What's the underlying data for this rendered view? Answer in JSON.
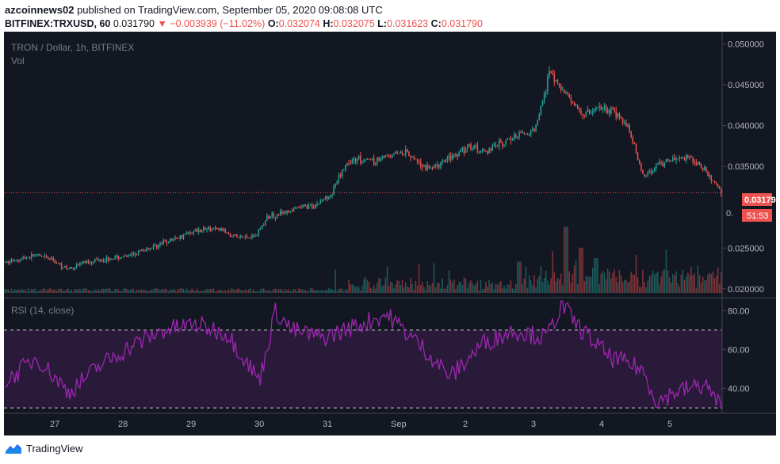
{
  "header": {
    "author": "azcoinnews02",
    "published_text": "published on TradingView.com, September 05, 2020 09:08:08 UTC",
    "symbol": "BITFINEX:TRXUSD, 60",
    "last": "0.031790",
    "change": "−0.003939 (−11.02%)",
    "open_label": "O:",
    "open": "0.032074",
    "high_label": "H:",
    "high": "0.032075",
    "low_label": "L:",
    "low": "0.031623",
    "close_label": "C:",
    "close": "0.031790"
  },
  "chart_data": [
    {
      "type": "candlestick",
      "title": "TRON / Dollar, 1h, BITFINEX",
      "volume_label": "Vol",
      "y_ticks": [
        "0.050000",
        "0.045000",
        "0.040000",
        "0.035000",
        "0.025000",
        "0.020000"
      ],
      "ylim": [
        0.0195,
        0.0515
      ],
      "x_ticks": [
        "27",
        "28",
        "29",
        "30",
        "31",
        "Sep",
        "2",
        "3",
        "4",
        "5"
      ],
      "last_price": "0.031790",
      "countdown": "51:53",
      "hidden_tick_fragment": "0.",
      "price_path": [
        [
          0,
          0.0232
        ],
        [
          1,
          0.0237
        ],
        [
          2,
          0.0241
        ],
        [
          3,
          0.0236
        ],
        [
          4,
          0.0224
        ],
        [
          5,
          0.0232
        ],
        [
          6,
          0.0236
        ],
        [
          7,
          0.0238
        ],
        [
          8,
          0.024
        ],
        [
          9,
          0.0248
        ],
        [
          10,
          0.0255
        ],
        [
          11,
          0.0262
        ],
        [
          12,
          0.027
        ],
        [
          13,
          0.0274
        ],
        [
          14,
          0.0272
        ],
        [
          15,
          0.0263
        ],
        [
          16,
          0.0264
        ],
        [
          17,
          0.029
        ],
        [
          18,
          0.0293
        ],
        [
          19,
          0.03
        ],
        [
          20,
          0.0303
        ],
        [
          21,
          0.0318
        ],
        [
          22,
          0.0356
        ],
        [
          23,
          0.036
        ],
        [
          24,
          0.0355
        ],
        [
          25,
          0.0368
        ],
        [
          26,
          0.0365
        ],
        [
          27,
          0.0348
        ],
        [
          28,
          0.0352
        ],
        [
          29,
          0.0366
        ],
        [
          30,
          0.0375
        ],
        [
          31,
          0.0368
        ],
        [
          32,
          0.038
        ],
        [
          33,
          0.0388
        ],
        [
          34,
          0.0393
        ],
        [
          35,
          0.0465
        ],
        [
          36,
          0.044
        ],
        [
          37,
          0.0415
        ],
        [
          38,
          0.042
        ],
        [
          39,
          0.042
        ],
        [
          40,
          0.04
        ],
        [
          41,
          0.0338
        ],
        [
          42,
          0.0352
        ],
        [
          43,
          0.036
        ],
        [
          44,
          0.0362
        ],
        [
          45,
          0.0345
        ],
        [
          46,
          0.0318
        ]
      ],
      "volume_spikes": [
        [
          36,
          0.38
        ],
        [
          37,
          0.26
        ],
        [
          38,
          0.2
        ],
        [
          33,
          0.18
        ]
      ]
    },
    {
      "type": "line",
      "title": "RSI (14, close)",
      "y_ticks": [
        "80.00",
        "60.00",
        "40.00"
      ],
      "ylim": [
        28,
        85
      ],
      "bands": [
        30,
        70
      ],
      "rsi_path": [
        [
          0,
          43
        ],
        [
          2,
          56
        ],
        [
          4,
          38
        ],
        [
          6,
          52
        ],
        [
          8,
          62
        ],
        [
          10,
          70
        ],
        [
          12,
          73
        ],
        [
          14,
          68
        ],
        [
          16,
          44
        ],
        [
          17,
          80
        ],
        [
          18,
          70
        ],
        [
          20,
          66
        ],
        [
          22,
          72
        ],
        [
          24,
          78
        ],
        [
          26,
          63
        ],
        [
          28,
          46
        ],
        [
          30,
          63
        ],
        [
          32,
          70
        ],
        [
          34,
          66
        ],
        [
          35,
          83
        ],
        [
          36,
          72
        ],
        [
          38,
          56
        ],
        [
          40,
          50
        ],
        [
          41,
          33
        ],
        [
          42,
          38
        ],
        [
          44,
          42
        ],
        [
          45,
          30
        ]
      ]
    }
  ],
  "footer": {
    "brand": "TradingView"
  }
}
